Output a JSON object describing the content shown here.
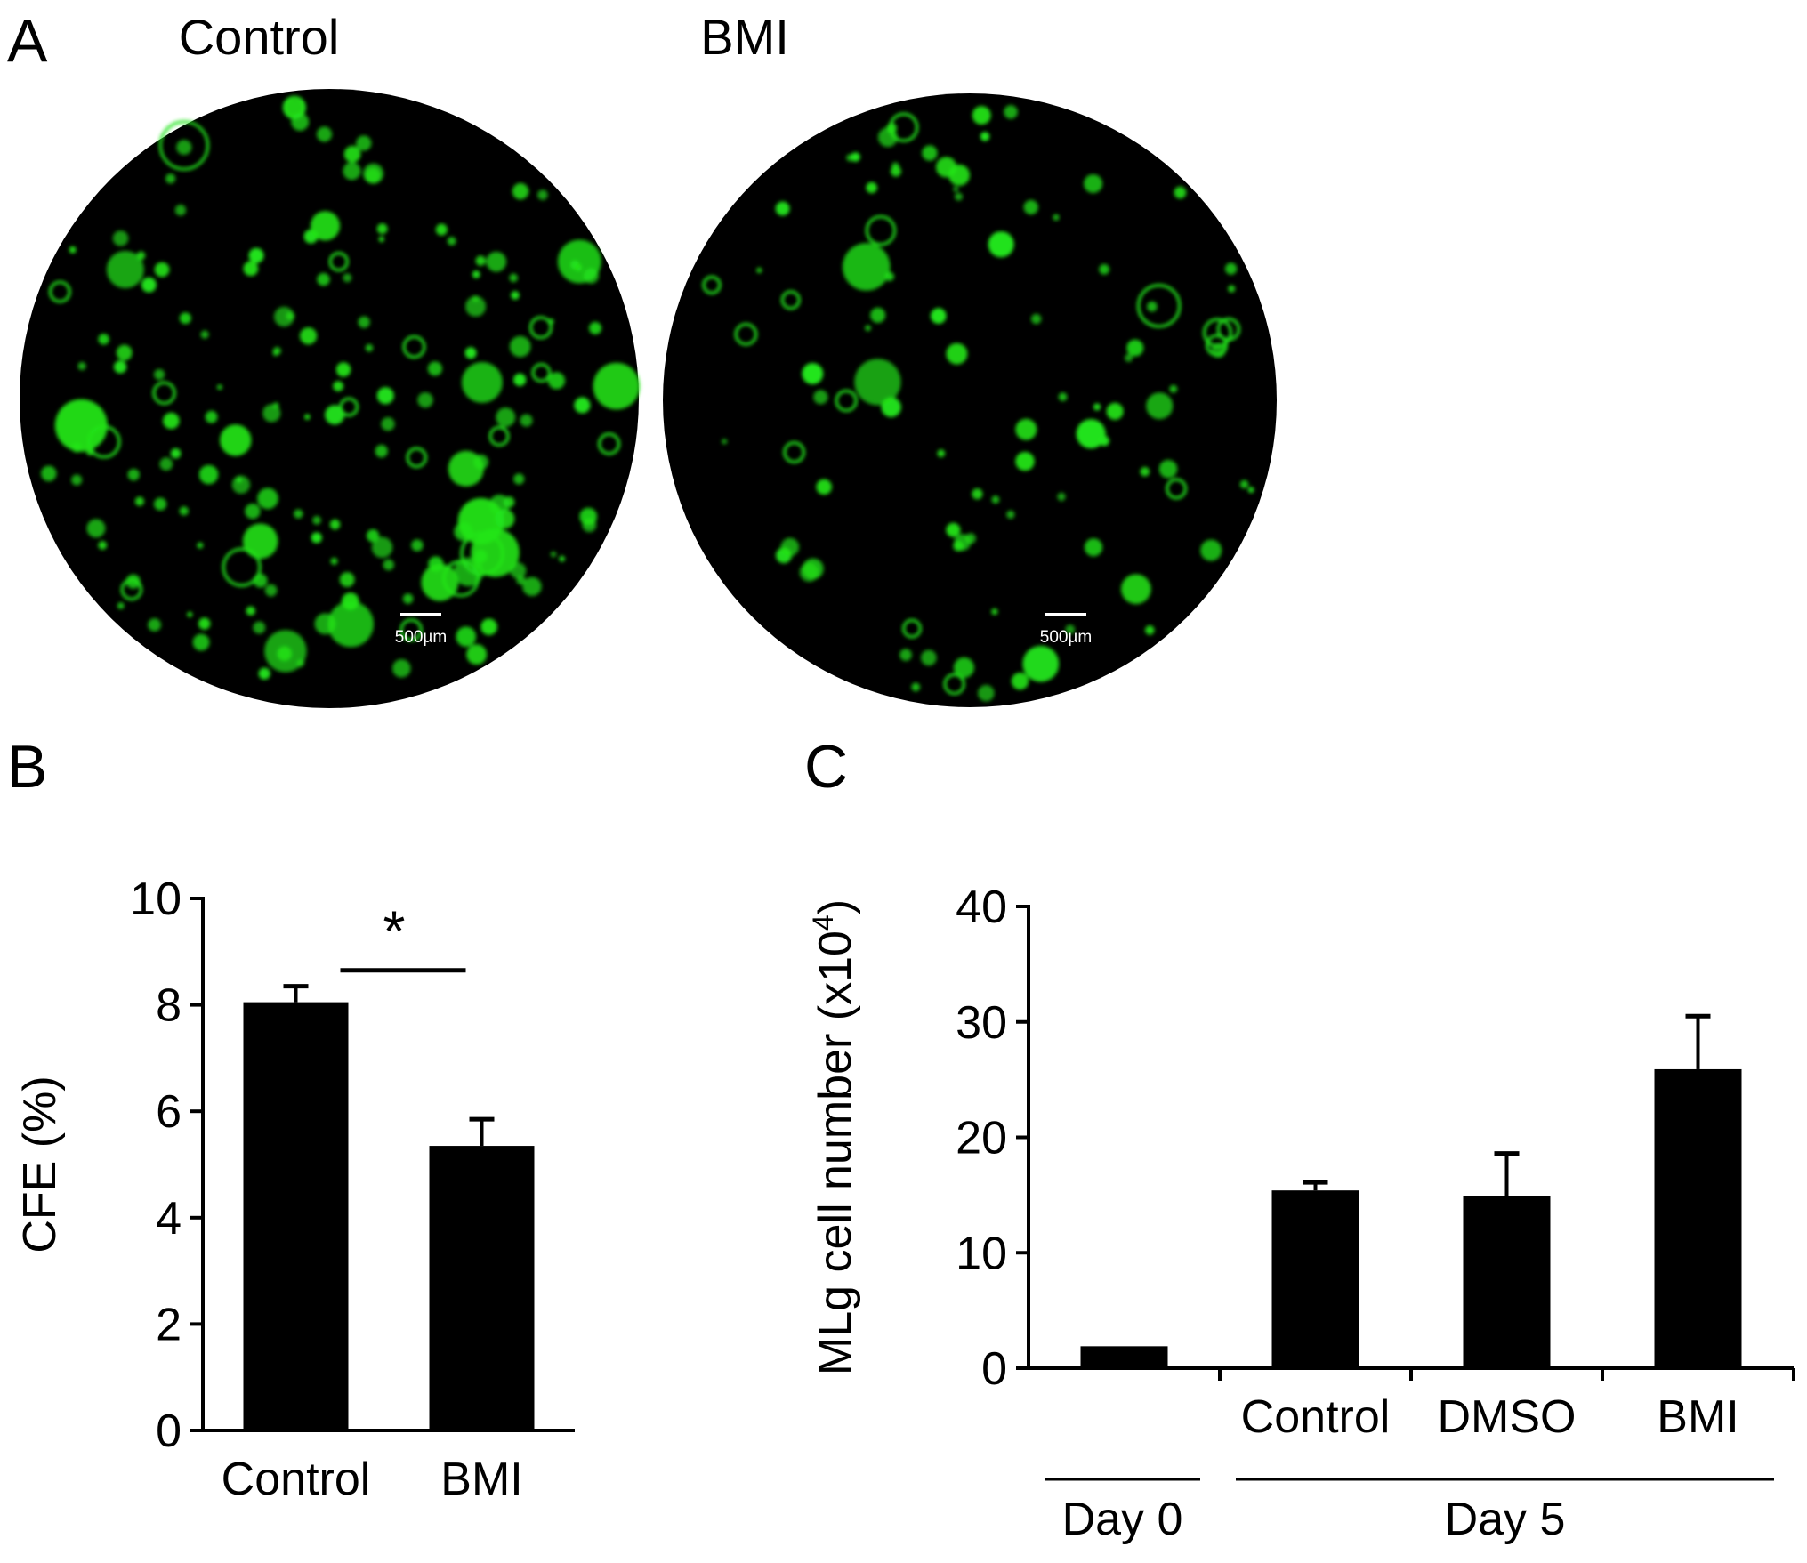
{
  "panel_a": {
    "letter": "A",
    "images": [
      {
        "label": "Control",
        "scale_bar": "500µm"
      },
      {
        "label": "BMI",
        "scale_bar": "500µm"
      }
    ],
    "colors": {
      "colony": "#22e51a",
      "background": "#000000"
    }
  },
  "chart_data": [
    {
      "panel": "B",
      "type": "bar",
      "ylabel": "CFE (%)",
      "xlabel": "",
      "categories": [
        "Control",
        "BMI"
      ],
      "values": [
        8.05,
        5.35
      ],
      "errors": [
        0.3,
        0.5
      ],
      "ylim": [
        0,
        10
      ],
      "yticks": [
        0,
        2,
        4,
        6,
        8,
        10
      ],
      "significance": {
        "between": [
          "Control",
          "BMI"
        ],
        "label": "*"
      },
      "bar_color": "#000000"
    },
    {
      "panel": "C",
      "type": "bar",
      "ylabel": "MLg cell number (x10",
      "ylabel_superscript": "4",
      "ylabel_suffix": ")",
      "xlabel": "",
      "categories": [
        "",
        "Control",
        "DMSO",
        "BMI"
      ],
      "values": [
        1.9,
        15.4,
        14.9,
        25.9
      ],
      "errors": [
        0,
        0.7,
        3.7,
        4.6
      ],
      "ylim": [
        0,
        40
      ],
      "yticks": [
        0,
        10,
        20,
        30,
        40
      ],
      "groups": [
        {
          "label": "Day 0",
          "members": [
            0
          ]
        },
        {
          "label": "Day 5",
          "members": [
            1,
            2,
            3
          ]
        }
      ],
      "bar_color": "#000000"
    }
  ]
}
